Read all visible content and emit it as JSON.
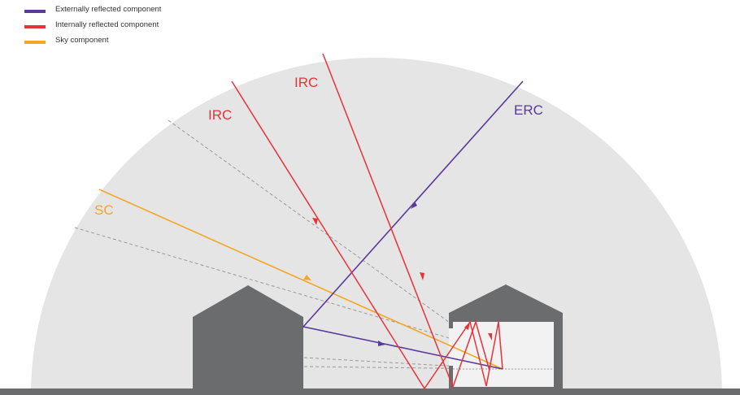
{
  "legend": [
    {
      "label": "Externally reflected component",
      "color": "#5b3a9a"
    },
    {
      "label": "Internally reflected component",
      "color": "#e8323a"
    },
    {
      "label": "Sky component",
      "color": "#f5a623"
    }
  ],
  "labels": {
    "irc_left": "IRC",
    "irc_right": "IRC",
    "erc": "ERC",
    "sc": "SC"
  },
  "colors": {
    "erc": "#5b3a9a",
    "irc": "#e8323a",
    "sc": "#f5a623",
    "sky_dome": "#e5e5e6",
    "buildings": "#6b6c6e",
    "ground": "#6b6c6e",
    "room_interior": "#f2f2f3",
    "dashed": "#9a9a9a"
  }
}
